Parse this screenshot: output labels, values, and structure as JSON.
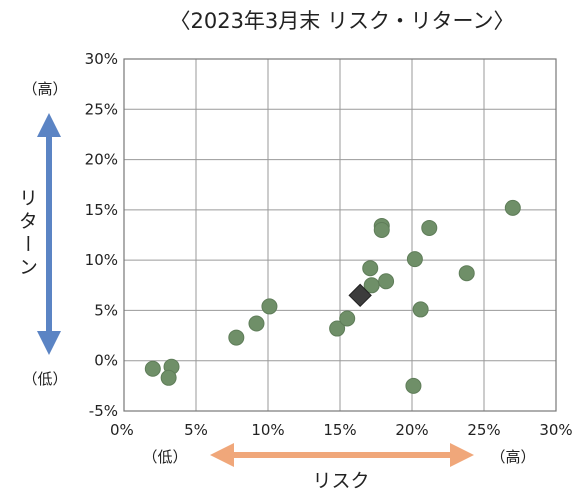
{
  "chart_data": {
    "type": "scatter",
    "title": "〈2023年3月末 リスク・リターン〉",
    "xlabel": "リスク",
    "ylabel": "リターン",
    "xlim": [
      0,
      30
    ],
    "ylim": [
      -5,
      30
    ],
    "x_ticks": [
      "0%",
      "5%",
      "10%",
      "15%",
      "20%",
      "25%",
      "30%"
    ],
    "y_ticks": [
      "30%",
      "25%",
      "20%",
      "15%",
      "10%",
      "5%",
      "0%",
      "-5%"
    ],
    "grid": true,
    "axis_end_labels": {
      "y_high": "（高）",
      "y_low": "（低）",
      "x_low": "（低）",
      "x_high": "（高）"
    },
    "colors": {
      "points": "#6f8f68",
      "highlight": "#3c3c3c",
      "y_arrow": "#5b84c4",
      "x_arrow": "#f0a77a"
    },
    "series": [
      {
        "marker": "circle",
        "points": [
          {
            "x": 2.0,
            "y": -0.8
          },
          {
            "x": 3.3,
            "y": -0.6
          },
          {
            "x": 3.1,
            "y": -1.7
          },
          {
            "x": 7.8,
            "y": 2.3
          },
          {
            "x": 9.2,
            "y": 3.7
          },
          {
            "x": 10.1,
            "y": 5.4
          },
          {
            "x": 14.8,
            "y": 3.2
          },
          {
            "x": 15.5,
            "y": 4.2
          },
          {
            "x": 17.1,
            "y": 9.2
          },
          {
            "x": 17.2,
            "y": 7.5
          },
          {
            "x": 17.9,
            "y": 13.4
          },
          {
            "x": 17.9,
            "y": 13.0
          },
          {
            "x": 18.2,
            "y": 7.9
          },
          {
            "x": 20.2,
            "y": 10.1
          },
          {
            "x": 20.6,
            "y": 5.1
          },
          {
            "x": 21.2,
            "y": 13.2
          },
          {
            "x": 20.1,
            "y": -2.5
          },
          {
            "x": 23.8,
            "y": 8.7
          },
          {
            "x": 27.0,
            "y": 15.2
          }
        ]
      },
      {
        "marker": "diamond",
        "points": [
          {
            "x": 16.4,
            "y": 6.5
          }
        ]
      }
    ]
  }
}
